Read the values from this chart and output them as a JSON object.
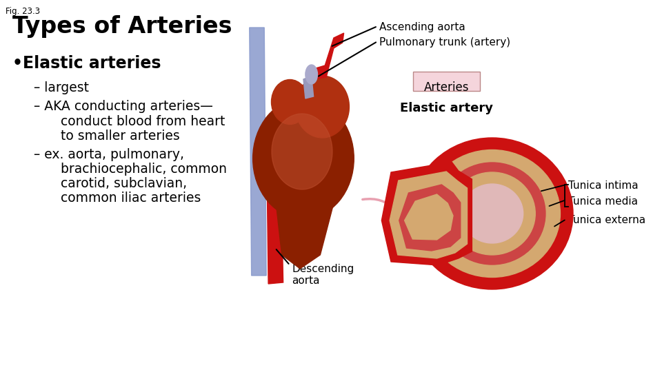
{
  "fig_label": "Fig. 23.3",
  "title": "Types of Arteries",
  "bullet_header": "Elastic arteries",
  "sub_bullet1": "– largest",
  "sub_bullet2a": "– AKA conducting arteries—",
  "sub_bullet2b": "   conduct blood from heart",
  "sub_bullet2c": "   to smaller arteries",
  "sub_bullet3a": "– ex. aorta, pulmonary,",
  "sub_bullet3b": "   brachiocephalic, common",
  "sub_bullet3c": "   carotid, subclavian,",
  "sub_bullet3d": "   common iliac arteries",
  "label_ascending": "Ascending aorta",
  "label_pulmonary": "Pulmonary trunk (artery)",
  "label_arteries": "Arteries",
  "label_elastic": "Elastic artery",
  "label_tunica_intima": "Tunica intima",
  "label_tunica_media": "Tunica media",
  "label_tunica_externa": "Tunica externa",
  "label_descending": "Descending\naorta",
  "bg": "#ffffff",
  "text_color": "#000000",
  "arteries_box_bg": "#f5d5dc",
  "arteries_box_border": "#ccaaaa",
  "red_dark": "#cc1111",
  "red_mid": "#dd3333",
  "tan": "#d4a870",
  "pink_inner": "#e8a0a0",
  "pink_lumen": "#e0b8b8",
  "blue_vessel": "#8899cc",
  "heart_dark": "#8b2000",
  "heart_mid": "#b03010",
  "heart_light": "#c05030"
}
